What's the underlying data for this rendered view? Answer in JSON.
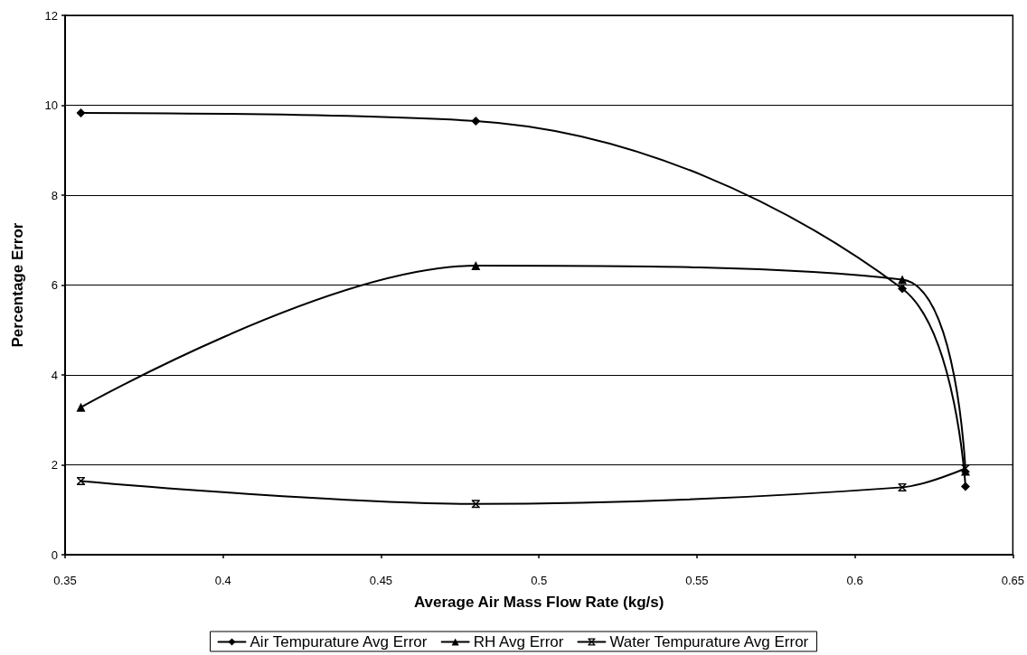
{
  "chart_data": {
    "type": "line",
    "xlabel": "Average Air Mass Flow Rate (kg/s)",
    "ylabel": "Percentage Error",
    "x": [
      0.355,
      0.48,
      0.615,
      0.635
    ],
    "series": [
      {
        "name": "Air Tempurature Avg Error",
        "color": "#000000",
        "marker": "diamond",
        "values": [
          9.83,
          9.65,
          5.92,
          1.52
        ]
      },
      {
        "name": "RH Avg Error",
        "color": "#000000",
        "marker": "triangle",
        "values": [
          3.28,
          6.43,
          6.12,
          1.86
        ]
      },
      {
        "name": "Water Tempurature Avg Error",
        "color": "#000000",
        "marker": "star",
        "values": [
          1.64,
          1.13,
          1.5,
          1.92
        ]
      }
    ],
    "xlim": [
      0.35,
      0.65
    ],
    "xticks": [
      0.35,
      0.4,
      0.45,
      0.5,
      0.55,
      0.6,
      0.65
    ],
    "ylim": [
      0,
      12
    ],
    "yticks": [
      0,
      2,
      4,
      6,
      8,
      10,
      12
    ],
    "grid": "y",
    "legend": "bottom",
    "line_style": "solid"
  }
}
